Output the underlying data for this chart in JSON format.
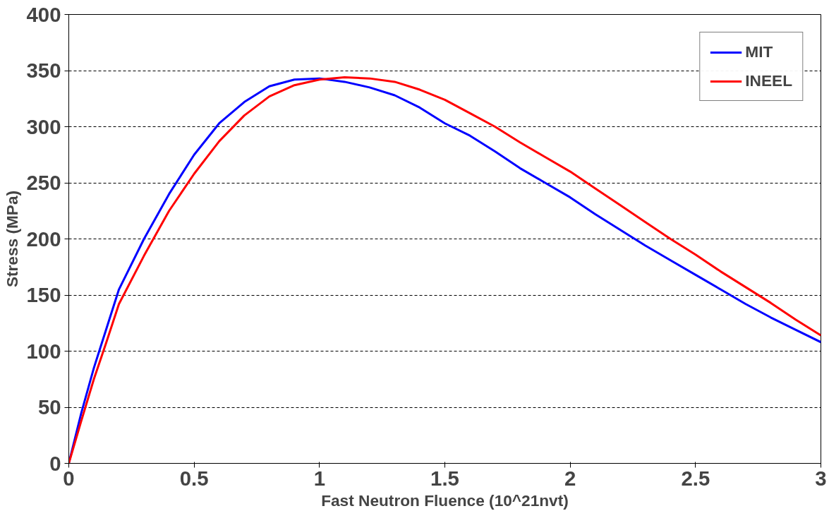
{
  "chart_data": {
    "type": "line",
    "xlabel": "Fast Neutron Fluence (10^21nvt)",
    "ylabel": "Stress (MPa)",
    "xlim": [
      0,
      3
    ],
    "xticks": [
      0,
      0.5,
      1,
      1.5,
      2,
      2.5,
      3
    ],
    "ylim": [
      0,
      400
    ],
    "yticks": [
      0,
      50,
      100,
      150,
      200,
      250,
      300,
      350,
      400
    ],
    "grid": "y",
    "legend": "top right",
    "line_style": "solid",
    "marker": "none",
    "x": [
      0,
      0.05,
      0.1,
      0.15,
      0.2,
      0.3,
      0.4,
      0.5,
      0.6,
      0.7,
      0.8,
      0.9,
      1.0,
      1.1,
      1.2,
      1.3,
      1.4,
      1.5,
      1.6,
      1.7,
      1.8,
      1.9,
      2.0,
      2.1,
      2.2,
      2.3,
      2.4,
      2.5,
      2.6,
      2.7,
      2.8,
      2.9,
      3.0
    ],
    "series": [
      {
        "name": "MIT",
        "color": "#0000ff",
        "values": [
          0,
          45,
          85,
          120,
          155,
          200,
          240,
          275,
          303,
          322,
          336,
          342,
          343,
          340,
          335,
          328,
          317,
          303,
          292,
          278,
          263,
          250,
          237,
          222,
          208,
          194,
          181,
          168,
          155,
          142,
          130,
          119,
          108
        ]
      },
      {
        "name": "INEEL",
        "color": "#ff0000",
        "values": [
          0,
          38,
          75,
          108,
          142,
          185,
          225,
          258,
          287,
          310,
          327,
          337,
          342,
          344,
          343,
          340,
          333,
          324,
          312,
          300,
          286,
          273,
          260,
          245,
          230,
          215,
          200,
          186,
          171,
          157,
          143,
          128,
          114
        ]
      }
    ]
  }
}
